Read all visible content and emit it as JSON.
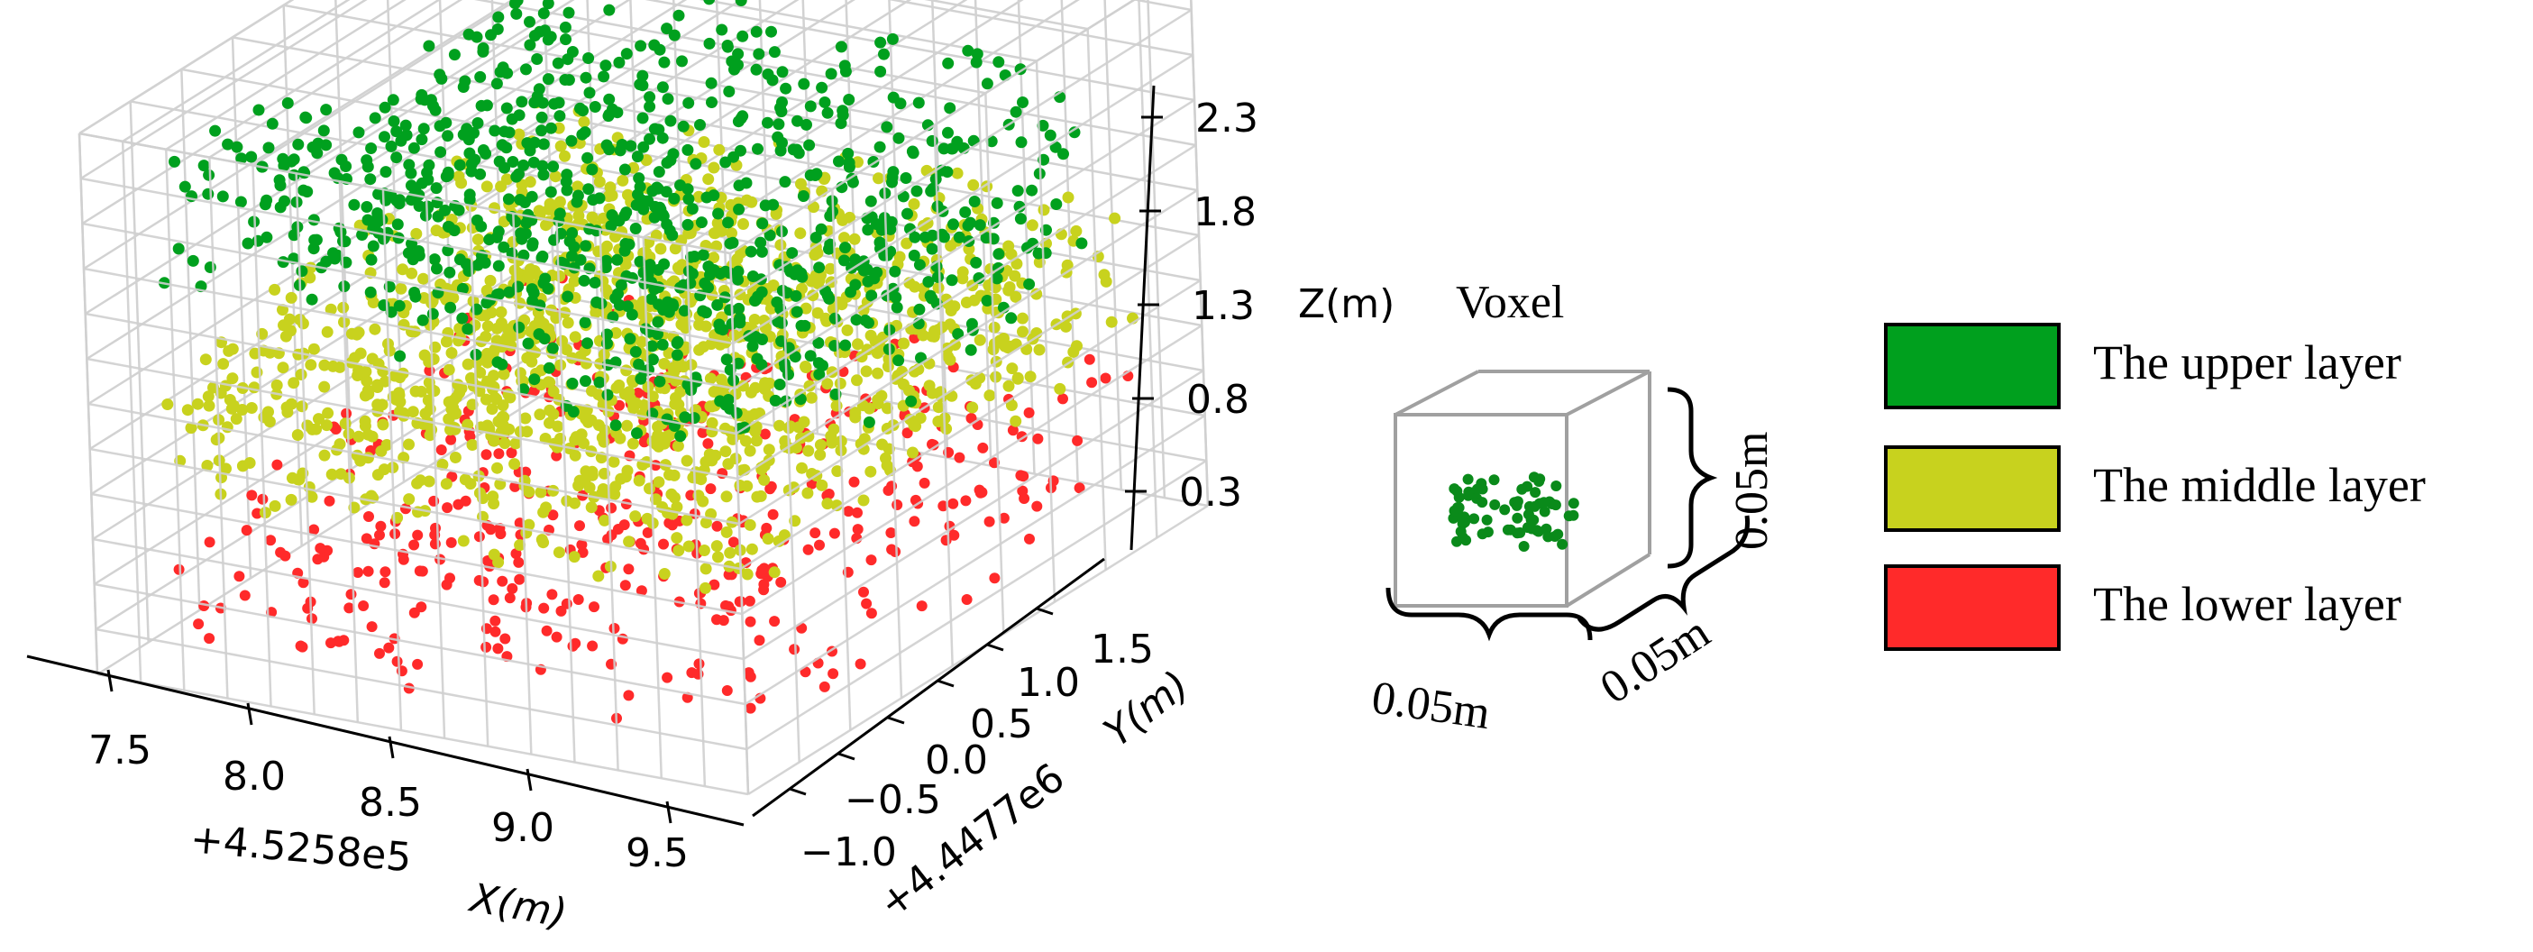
{
  "chart_data": {
    "type": "scatter",
    "projection": "3d",
    "axes": {
      "x": {
        "label": "X(m)",
        "offset_text": "+4.5258e5",
        "ticks": [
          "7.5",
          "8.0",
          "8.5",
          "9.0",
          "9.5"
        ],
        "range": [
          7.2,
          9.8
        ]
      },
      "y": {
        "label": "Y(m)",
        "offset_text": "+4.4477e6",
        "ticks": [
          "−1.0",
          "−0.5",
          "0.0",
          "0.5",
          "1.0",
          "1.5"
        ],
        "range": [
          -1.2,
          1.7
        ]
      },
      "z": {
        "label": "Z(m)",
        "ticks": [
          "0.3",
          "0.8",
          "1.3",
          "1.8",
          "2.3"
        ],
        "range": [
          0.0,
          2.5
        ]
      }
    },
    "voxel_grid": {
      "voxel_size_m": 0.05
    },
    "series": [
      {
        "name": "The upper layer",
        "color": "#00a01e",
        "z_range": [
          1.3,
          2.4
        ]
      },
      {
        "name": "The middle layer",
        "color": "#c8d21e",
        "z_range": [
          0.7,
          1.5
        ]
      },
      {
        "name": "The lower layer",
        "color": "#ff2a2a",
        "z_range": [
          0.0,
          0.7
        ]
      }
    ],
    "grid": true,
    "legend_position": "right"
  },
  "inset": {
    "title": "Voxel",
    "dim_front": "0.05m",
    "dim_side": "0.05m",
    "dim_height": "0.05m",
    "point_color": "#0a8a1a"
  }
}
